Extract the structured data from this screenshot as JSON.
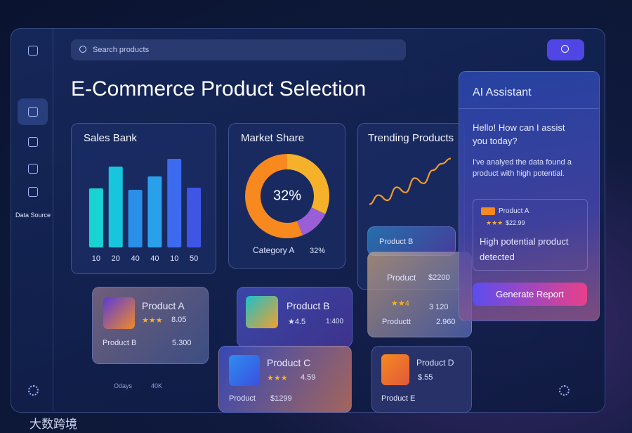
{
  "sidebar": {
    "data_source": "Data Source"
  },
  "search": {
    "placeholder": "Search products"
  },
  "title": "E-Commerce Product Selection",
  "chart_data": [
    {
      "type": "bar",
      "title": "Sales Bank",
      "categories": [
        "10",
        "20",
        "40",
        "40",
        "10",
        "50"
      ],
      "values": [
        84,
        115,
        82,
        101,
        126,
        85
      ],
      "ylim": [
        0,
        130
      ],
      "colors": [
        "#19d3d3",
        "#17c6dc",
        "#2a8fe8",
        "#2aa0ea",
        "#3d6bf0",
        "#3f55e6"
      ]
    },
    {
      "type": "pie",
      "title": "Market Share",
      "categories": [
        "Category A",
        null,
        null
      ],
      "values": [
        32,
        12,
        56
      ],
      "value_labels": [
        "32%",
        null,
        null
      ],
      "colors": [
        "#f6b12a",
        "#9a5fd6",
        "#f7891f"
      ]
    },
    {
      "type": "line",
      "title": "Trending Products",
      "values": [
        8,
        22,
        14,
        34,
        26,
        48,
        40,
        60,
        70,
        78
      ],
      "ylim": [
        0,
        100
      ],
      "color": "#f39a2b"
    }
  ],
  "product_cards": [
    {
      "name": "Product A",
      "stars": "★★★",
      "score": "8.05",
      "sub_name": "Product B",
      "sub_value": "5.300"
    },
    {
      "name": "Product B",
      "rating": "★4.5",
      "value": "1:400"
    },
    {
      "name": "Product C",
      "stars": "★★★",
      "score": "4.59",
      "sub_name": "Product",
      "sub_value": "$1299"
    },
    {
      "name": "Product D",
      "value": "$.55",
      "sub_name": "Product E"
    },
    {
      "name": "Product B"
    },
    {
      "name": "Product",
      "price": "$2200",
      "stars": "★★4",
      "value": "3 120",
      "sub_name": "Productt",
      "sub_value": "2.960"
    }
  ],
  "footer_stats": {
    "days": "Odays",
    "amount": "40K"
  },
  "assistant": {
    "title": "AI Assistant",
    "greeting": "Hello! How can I assist you today?",
    "message": "I've analyed the data found a product with high potential.",
    "product": {
      "name": "Product A",
      "stars": "★★★",
      "price": "$22.99"
    },
    "detection": "High potential product detected",
    "button": "Generate Report"
  },
  "watermark": "大数跨境"
}
